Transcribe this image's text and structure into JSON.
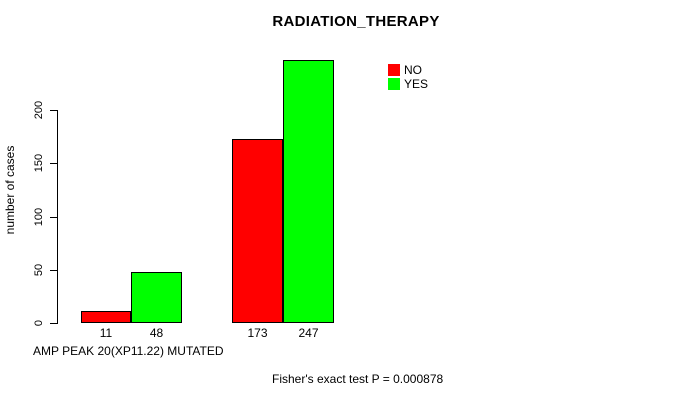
{
  "figure": {
    "title": "RADIATION_THERAPY",
    "y_axis": {
      "label": "number of cases",
      "ticks": [
        "0",
        "50",
        "100",
        "150",
        "200"
      ]
    },
    "x_axis_note": "AMP PEAK 20(XP11.22) MUTATED",
    "stat_annotation": "Fisher's exact test P = 0.000878",
    "legend": {
      "items": [
        {
          "label": "NO",
          "color": "#FF0000"
        },
        {
          "label": "YES",
          "color": "#00FF00"
        }
      ]
    },
    "colors": {
      "background": "#FFFFFF",
      "axis": "#000000",
      "text": "#000000"
    }
  },
  "chart_data": {
    "type": "bar",
    "title": "RADIATION_THERAPY",
    "ylabel": "number of cases",
    "xlabel": "AMP PEAK 20(XP11.22) MUTATED",
    "series": [
      {
        "name": "NO",
        "color": "#FF0000",
        "values": [
          11,
          173
        ]
      },
      {
        "name": "YES",
        "color": "#00FF00",
        "values": [
          48,
          247
        ]
      }
    ],
    "bar_value_labels": [
      "11",
      "48",
      "173",
      "247"
    ],
    "yticks": [
      0,
      50,
      100,
      150,
      200
    ],
    "ylim": [
      0,
      250
    ],
    "grid": false,
    "legend_position": "top-right",
    "annotation": "Fisher's exact test P = 0.000878"
  }
}
